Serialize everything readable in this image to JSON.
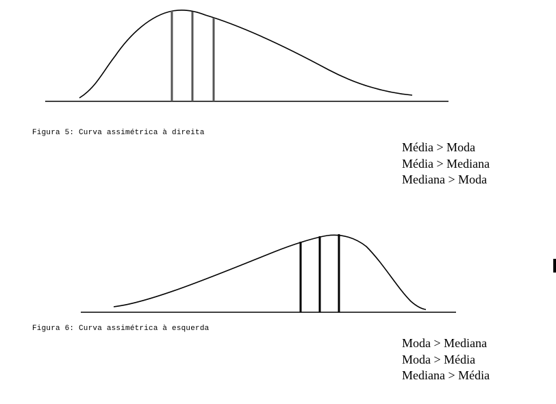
{
  "figure5": {
    "caption": "Figura 5: Curva assimétrica à direita",
    "relations": [
      "Média > Moda",
      "Média > Mediana",
      "Mediana > Moda"
    ]
  },
  "figure6": {
    "caption": "Figura 6: Curva assimétrica à esquerda",
    "relations": [
      "Moda > Mediana",
      "Moda > Média",
      "Mediana > Média"
    ]
  },
  "colors": {
    "line": "#000000",
    "marker_gray": "#555555",
    "background": "#ffffff"
  }
}
